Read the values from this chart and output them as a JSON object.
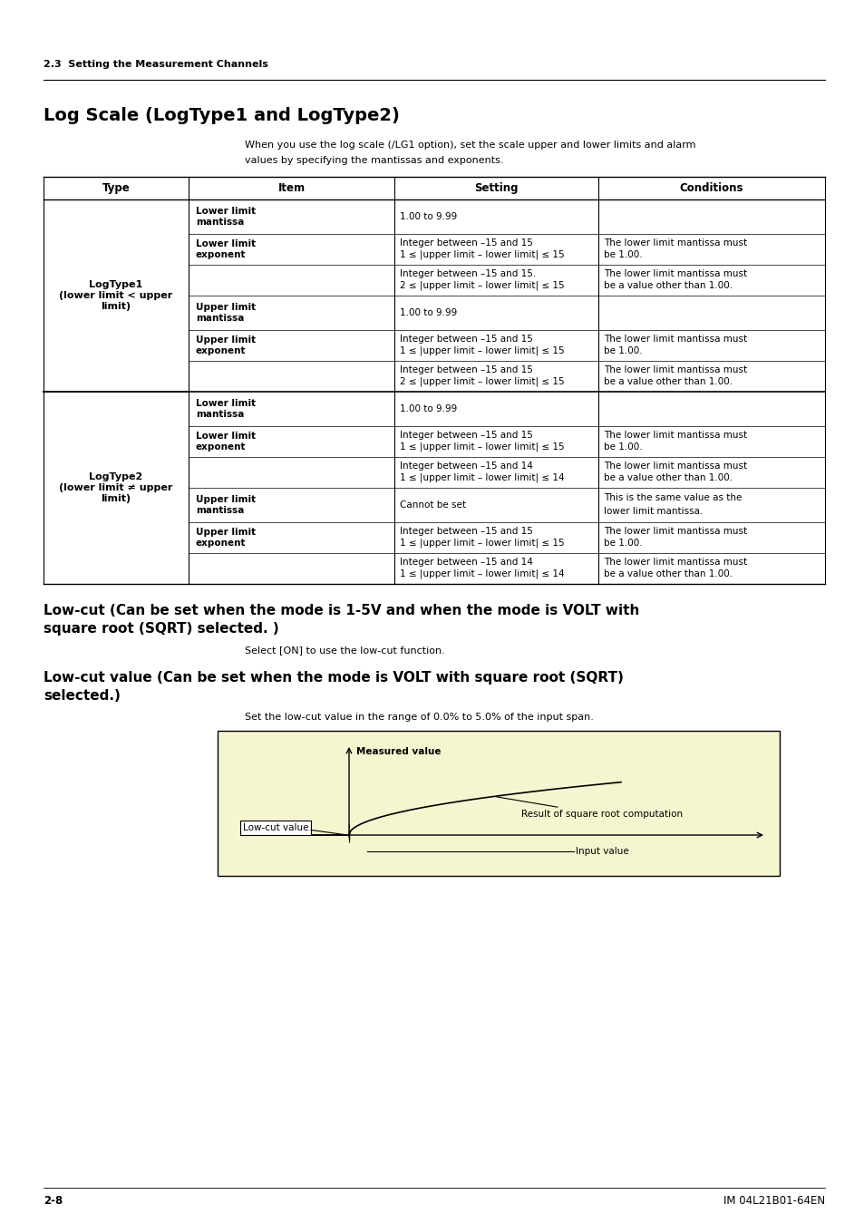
{
  "page_bg": "#ffffff",
  "header_section": "2.3  Setting the Measurement Channels",
  "title": "Log Scale (LogType1 and LogType2)",
  "intro_text_1": "When you use the log scale (/LG1 option), set the scale upper and lower limits and alarm",
  "intro_text_2": "values by specifying the mantissas and exponents.",
  "table_header": [
    "Type",
    "Item",
    "Setting",
    "Conditions"
  ],
  "logtype1_label": "LogType1\n(lower limit < upper\nlimit)",
  "logtype2_label": "LogType2\n(lower limit ≠ upper\nlimit)",
  "section2_title_1": "Low-cut (Can be set when the mode is 1-5V and when the mode is VOLT with",
  "section2_title_2": "square root (SQRT) selected. )",
  "section2_text": "Select [ON] to use the low-cut function.",
  "section3_title_1": "Low-cut value (Can be set when the mode is VOLT with square root (SQRT)",
  "section3_title_2": "selected.)",
  "section3_text": "Set the low-cut value in the range of 0.0% to 5.0% of the input span.",
  "diagram_bg": "#f5f5d0",
  "diagram_label_measured": "Measured value",
  "diagram_label_result": "Result of square root computation",
  "diagram_label_lowcut": "Low-cut value",
  "diagram_label_input": "Input value",
  "footer_left": "2-8",
  "footer_right": "IM 04L21B01-64EN"
}
